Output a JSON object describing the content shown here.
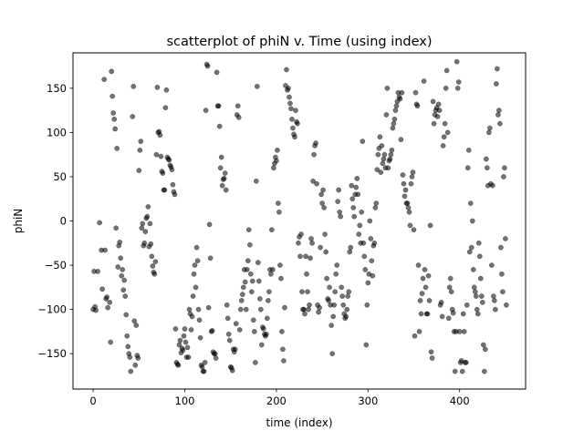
{
  "chart_data": {
    "type": "scatter",
    "title": "scatterplot of phiN v. Time (using index)",
    "xlabel": "time (index)",
    "ylabel": "phiN",
    "xlim": [
      -22,
      472
    ],
    "ylim": [
      -190,
      190
    ],
    "xticks": [
      0,
      100,
      200,
      300,
      400
    ],
    "yticks": [
      -150,
      -100,
      -50,
      0,
      50,
      100,
      150
    ],
    "grid": false,
    "marker_color": "#000000",
    "marker_alpha": 0.55,
    "points": [
      [
        0,
        -100
      ],
      [
        1,
        -57
      ],
      [
        2,
        -97
      ],
      [
        3,
        -101
      ],
      [
        5,
        -57
      ],
      [
        7,
        -2
      ],
      [
        9,
        -33
      ],
      [
        10,
        -77
      ],
      [
        12,
        160
      ],
      [
        13,
        -33
      ],
      [
        14,
        -88
      ],
      [
        15,
        -86
      ],
      [
        16,
        -98
      ],
      [
        18,
        -92
      ],
      [
        19,
        -137
      ],
      [
        20,
        169
      ],
      [
        21,
        141
      ],
      [
        22,
        122
      ],
      [
        23,
        115
      ],
      [
        24,
        104
      ],
      [
        25,
        -8
      ],
      [
        26,
        82
      ],
      [
        27,
        -52
      ],
      [
        28,
        -28
      ],
      [
        29,
        -24
      ],
      [
        30,
        -42
      ],
      [
        31,
        -62
      ],
      [
        32,
        -55
      ],
      [
        33,
        -78
      ],
      [
        34,
        -67
      ],
      [
        35,
        -85
      ],
      [
        36,
        -106
      ],
      [
        37,
        -130
      ],
      [
        38,
        -142
      ],
      [
        39,
        -150
      ],
      [
        40,
        -154
      ],
      [
        41,
        -170
      ],
      [
        43,
        118
      ],
      [
        44,
        152
      ],
      [
        45,
        -113
      ],
      [
        46,
        -163
      ],
      [
        47,
        -118
      ],
      [
        48,
        -152
      ],
      [
        49,
        -155
      ],
      [
        50,
        57
      ],
      [
        51,
        80
      ],
      [
        52,
        90
      ],
      [
        53,
        -8
      ],
      [
        54,
        -3
      ],
      [
        55,
        -28
      ],
      [
        56,
        -25
      ],
      [
        57,
        -12
      ],
      [
        58,
        3
      ],
      [
        59,
        5
      ],
      [
        60,
        16
      ],
      [
        61,
        -29
      ],
      [
        62,
        -3
      ],
      [
        63,
        -26
      ],
      [
        64,
        -40
      ],
      [
        65,
        -51
      ],
      [
        66,
        -58
      ],
      [
        67,
        -60
      ],
      [
        68,
        -46
      ],
      [
        69,
        75
      ],
      [
        70,
        151
      ],
      [
        71,
        100
      ],
      [
        72,
        101
      ],
      [
        73,
        97
      ],
      [
        74,
        73
      ],
      [
        75,
        56
      ],
      [
        76,
        54
      ],
      [
        77,
        35
      ],
      [
        78,
        35
      ],
      [
        79,
        128
      ],
      [
        80,
        148
      ],
      [
        81,
        72
      ],
      [
        82,
        70
      ],
      [
        83,
        69
      ],
      [
        84,
        63
      ],
      [
        85,
        61
      ],
      [
        86,
        58
      ],
      [
        87,
        41
      ],
      [
        88,
        33
      ],
      [
        89,
        30
      ],
      [
        90,
        -122
      ],
      [
        91,
        -160
      ],
      [
        92,
        -162
      ],
      [
        93,
        -163
      ],
      [
        94,
        -140
      ],
      [
        95,
        -135
      ],
      [
        96,
        -149
      ],
      [
        97,
        -144
      ],
      [
        98,
        -146
      ],
      [
        99,
        -130
      ],
      [
        100,
        -122
      ],
      [
        101,
        -137
      ],
      [
        102,
        -154
      ],
      [
        103,
        -143
      ],
      [
        104,
        -154
      ],
      [
        105,
        -100
      ],
      [
        106,
        -105
      ],
      [
        107,
        -123
      ],
      [
        108,
        -108
      ],
      [
        109,
        -85
      ],
      [
        110,
        -60
      ],
      [
        111,
        -50
      ],
      [
        112,
        -75
      ],
      [
        113,
        -30
      ],
      [
        114,
        -45
      ],
      [
        115,
        -100
      ],
      [
        116,
        -112
      ],
      [
        117,
        -132
      ],
      [
        118,
        -163
      ],
      [
        119,
        -165
      ],
      [
        120,
        -170
      ],
      [
        121,
        -170
      ],
      [
        122,
        -160
      ],
      [
        123,
        125
      ],
      [
        124,
        177
      ],
      [
        125,
        175
      ],
      [
        126,
        -98
      ],
      [
        127,
        -4
      ],
      [
        128,
        -42
      ],
      [
        129,
        -125
      ],
      [
        130,
        -124
      ],
      [
        131,
        -148
      ],
      [
        132,
        -150
      ],
      [
        133,
        -150
      ],
      [
        134,
        -155
      ],
      [
        135,
        168
      ],
      [
        136,
        130
      ],
      [
        137,
        130
      ],
      [
        138,
        107
      ],
      [
        139,
        60
      ],
      [
        140,
        72
      ],
      [
        141,
        40
      ],
      [
        142,
        47
      ],
      [
        143,
        48
      ],
      [
        144,
        54
      ],
      [
        145,
        35
      ],
      [
        146,
        -95
      ],
      [
        147,
        -110
      ],
      [
        148,
        -128
      ],
      [
        149,
        -135
      ],
      [
        150,
        -165
      ],
      [
        151,
        -166
      ],
      [
        152,
        -169
      ],
      [
        153,
        -145
      ],
      [
        154,
        -148
      ],
      [
        155,
        -145
      ],
      [
        156,
        -116
      ],
      [
        157,
        120
      ],
      [
        158,
        130
      ],
      [
        159,
        117
      ],
      [
        160,
        -123
      ],
      [
        161,
        -100
      ],
      [
        162,
        -90
      ],
      [
        163,
        -83
      ],
      [
        164,
        -75
      ],
      [
        165,
        -55
      ],
      [
        166,
        -69
      ],
      [
        167,
        -100
      ],
      [
        168,
        -55
      ],
      [
        169,
        -45
      ],
      [
        170,
        -10
      ],
      [
        171,
        -27
      ],
      [
        172,
        -60
      ],
      [
        173,
        -80
      ],
      [
        174,
        -68
      ],
      [
        175,
        -112
      ],
      [
        176,
        -125
      ],
      [
        177,
        -160
      ],
      [
        178,
        45
      ],
      [
        179,
        152
      ],
      [
        180,
        -47
      ],
      [
        181,
        -68
      ],
      [
        182,
        -88
      ],
      [
        183,
        -100
      ],
      [
        184,
        -140
      ],
      [
        185,
        -120
      ],
      [
        186,
        -122
      ],
      [
        187,
        -128
      ],
      [
        188,
        -130
      ],
      [
        189,
        -128
      ],
      [
        190,
        -110
      ],
      [
        191,
        -90
      ],
      [
        192,
        -80
      ],
      [
        193,
        -55
      ],
      [
        194,
        -60
      ],
      [
        195,
        -10
      ],
      [
        196,
        -55
      ],
      [
        197,
        60
      ],
      [
        198,
        65
      ],
      [
        199,
        72
      ],
      [
        200,
        68
      ],
      [
        201,
        80
      ],
      [
        202,
        20
      ],
      [
        203,
        10
      ],
      [
        204,
        -50
      ],
      [
        205,
        -65
      ],
      [
        206,
        -125
      ],
      [
        207,
        -145
      ],
      [
        208,
        -158
      ],
      [
        209,
        -98
      ],
      [
        210,
        153
      ],
      [
        211,
        171
      ],
      [
        212,
        148
      ],
      [
        213,
        150
      ],
      [
        214,
        140
      ],
      [
        215,
        133
      ],
      [
        216,
        127
      ],
      [
        217,
        115
      ],
      [
        218,
        105
      ],
      [
        219,
        98
      ],
      [
        220,
        95
      ],
      [
        221,
        125
      ],
      [
        222,
        112
      ],
      [
        223,
        110
      ],
      [
        224,
        -25
      ],
      [
        225,
        -18
      ],
      [
        226,
        -40
      ],
      [
        227,
        -15
      ],
      [
        228,
        -80
      ],
      [
        229,
        -100
      ],
      [
        230,
        -100
      ],
      [
        231,
        -105
      ],
      [
        232,
        -40
      ],
      [
        233,
        -60
      ],
      [
        234,
        -80
      ],
      [
        235,
        -100
      ],
      [
        236,
        -95
      ],
      [
        237,
        -42
      ],
      [
        238,
        -20
      ],
      [
        239,
        -25
      ],
      [
        240,
        45
      ],
      [
        241,
        75
      ],
      [
        242,
        85
      ],
      [
        243,
        88
      ],
      [
        244,
        42
      ],
      [
        245,
        -95
      ],
      [
        246,
        -103
      ],
      [
        247,
        -98
      ],
      [
        248,
        -30
      ],
      [
        249,
        30
      ],
      [
        250,
        20
      ],
      [
        251,
        35
      ],
      [
        252,
        15
      ],
      [
        253,
        -15
      ],
      [
        254,
        -35
      ],
      [
        255,
        -65
      ],
      [
        256,
        -88
      ],
      [
        257,
        -90
      ],
      [
        258,
        -75
      ],
      [
        259,
        -95
      ],
      [
        260,
        -118
      ],
      [
        261,
        -150
      ],
      [
        262,
        -108
      ],
      [
        263,
        -95
      ],
      [
        264,
        -80
      ],
      [
        265,
        -60
      ],
      [
        266,
        -50
      ],
      [
        267,
        22
      ],
      [
        268,
        35
      ],
      [
        269,
        10
      ],
      [
        270,
        5
      ],
      [
        271,
        -75
      ],
      [
        272,
        -85
      ],
      [
        273,
        -95
      ],
      [
        274,
        -105
      ],
      [
        275,
        -110
      ],
      [
        276,
        -108
      ],
      [
        277,
        -100
      ],
      [
        278,
        -85
      ],
      [
        279,
        -80
      ],
      [
        280,
        -35
      ],
      [
        281,
        -30
      ],
      [
        282,
        40
      ],
      [
        283,
        25
      ],
      [
        284,
        15
      ],
      [
        285,
        5
      ],
      [
        286,
        30
      ],
      [
        287,
        38
      ],
      [
        288,
        48
      ],
      [
        289,
        30
      ],
      [
        290,
        -15
      ],
      [
        291,
        -5
      ],
      [
        292,
        -25
      ],
      [
        293,
        10
      ],
      [
        294,
        90
      ],
      [
        295,
        -25
      ],
      [
        296,
        -40
      ],
      [
        297,
        -55
      ],
      [
        298,
        -140
      ],
      [
        299,
        -95
      ],
      [
        300,
        -70
      ],
      [
        301,
        -60
      ],
      [
        302,
        0
      ],
      [
        303,
        -20
      ],
      [
        304,
        -45
      ],
      [
        305,
        -62
      ],
      [
        306,
        -28
      ],
      [
        307,
        -25
      ],
      [
        308,
        15
      ],
      [
        309,
        20
      ],
      [
        310,
        58
      ],
      [
        311,
        75
      ],
      [
        312,
        82
      ],
      [
        313,
        95
      ],
      [
        314,
        55
      ],
      [
        315,
        85
      ],
      [
        316,
        65
      ],
      [
        317,
        70
      ],
      [
        318,
        75
      ],
      [
        319,
        60
      ],
      [
        320,
        120
      ],
      [
        321,
        150
      ],
      [
        322,
        60
      ],
      [
        323,
        68
      ],
      [
        324,
        70
      ],
      [
        325,
        75
      ],
      [
        326,
        80
      ],
      [
        327,
        105
      ],
      [
        328,
        110
      ],
      [
        329,
        115
      ],
      [
        330,
        125
      ],
      [
        331,
        130
      ],
      [
        332,
        135
      ],
      [
        333,
        145
      ],
      [
        334,
        140
      ],
      [
        335,
        138
      ],
      [
        336,
        92
      ],
      [
        337,
        145
      ],
      [
        338,
        52
      ],
      [
        339,
        42
      ],
      [
        340,
        28
      ],
      [
        341,
        35
      ],
      [
        342,
        20
      ],
      [
        343,
        20
      ],
      [
        344,
        15
      ],
      [
        345,
        10
      ],
      [
        346,
        -5
      ],
      [
        347,
        42
      ],
      [
        348,
        50
      ],
      [
        349,
        55
      ],
      [
        350,
        -10
      ],
      [
        351,
        -130
      ],
      [
        352,
        145
      ],
      [
        353,
        132
      ],
      [
        354,
        130
      ],
      [
        355,
        -50
      ],
      [
        356,
        -125
      ],
      [
        357,
        -90
      ],
      [
        358,
        -105
      ],
      [
        359,
        -82
      ],
      [
        360,
        -65
      ],
      [
        361,
        158
      ],
      [
        362,
        -55
      ],
      [
        363,
        -75
      ],
      [
        364,
        -105
      ],
      [
        365,
        -105
      ],
      [
        366,
        -62
      ],
      [
        367,
        -90
      ],
      [
        368,
        -5
      ],
      [
        369,
        -148
      ],
      [
        370,
        -155
      ],
      [
        371,
        135
      ],
      [
        372,
        110
      ],
      [
        373,
        120
      ],
      [
        374,
        125
      ],
      [
        375,
        128
      ],
      [
        376,
        118
      ],
      [
        377,
        132
      ],
      [
        378,
        125
      ],
      [
        379,
        -95
      ],
      [
        380,
        -92
      ],
      [
        381,
        -108
      ],
      [
        382,
        85
      ],
      [
        383,
        95
      ],
      [
        384,
        110
      ],
      [
        385,
        150
      ],
      [
        386,
        170
      ],
      [
        387,
        100
      ],
      [
        388,
        -110
      ],
      [
        389,
        -75
      ],
      [
        390,
        -65
      ],
      [
        391,
        -80
      ],
      [
        392,
        -100
      ],
      [
        393,
        -104
      ],
      [
        394,
        -125
      ],
      [
        395,
        -170
      ],
      [
        396,
        -125
      ],
      [
        397,
        180
      ],
      [
        398,
        150
      ],
      [
        399,
        157
      ],
      [
        400,
        -125
      ],
      [
        401,
        -160
      ],
      [
        402,
        -158
      ],
      [
        403,
        -170
      ],
      [
        404,
        -105
      ],
      [
        405,
        -125
      ],
      [
        406,
        -160
      ],
      [
        407,
        -160
      ],
      [
        408,
        -95
      ],
      [
        409,
        60
      ],
      [
        410,
        80
      ],
      [
        411,
        -35
      ],
      [
        412,
        20
      ],
      [
        413,
        -30
      ],
      [
        414,
        0
      ],
      [
        415,
        -55
      ],
      [
        416,
        -75
      ],
      [
        417,
        -80
      ],
      [
        418,
        -85
      ],
      [
        419,
        -100
      ],
      [
        420,
        -105
      ],
      [
        421,
        -25
      ],
      [
        422,
        -40
      ],
      [
        423,
        -65
      ],
      [
        424,
        -85
      ],
      [
        425,
        -92
      ],
      [
        426,
        -140
      ],
      [
        427,
        -170
      ],
      [
        428,
        -145
      ],
      [
        429,
        70
      ],
      [
        430,
        60
      ],
      [
        431,
        40
      ],
      [
        432,
        100
      ],
      [
        433,
        105
      ],
      [
        434,
        42
      ],
      [
        435,
        -50
      ],
      [
        436,
        40
      ],
      [
        437,
        -85
      ],
      [
        438,
        -90
      ],
      [
        439,
        -100
      ],
      [
        440,
        155
      ],
      [
        441,
        172
      ],
      [
        442,
        120
      ],
      [
        443,
        125
      ],
      [
        444,
        110
      ],
      [
        445,
        -30
      ],
      [
        446,
        -60
      ],
      [
        447,
        -80
      ],
      [
        448,
        50
      ],
      [
        449,
        60
      ],
      [
        450,
        -20
      ],
      [
        451,
        -95
      ]
    ]
  }
}
